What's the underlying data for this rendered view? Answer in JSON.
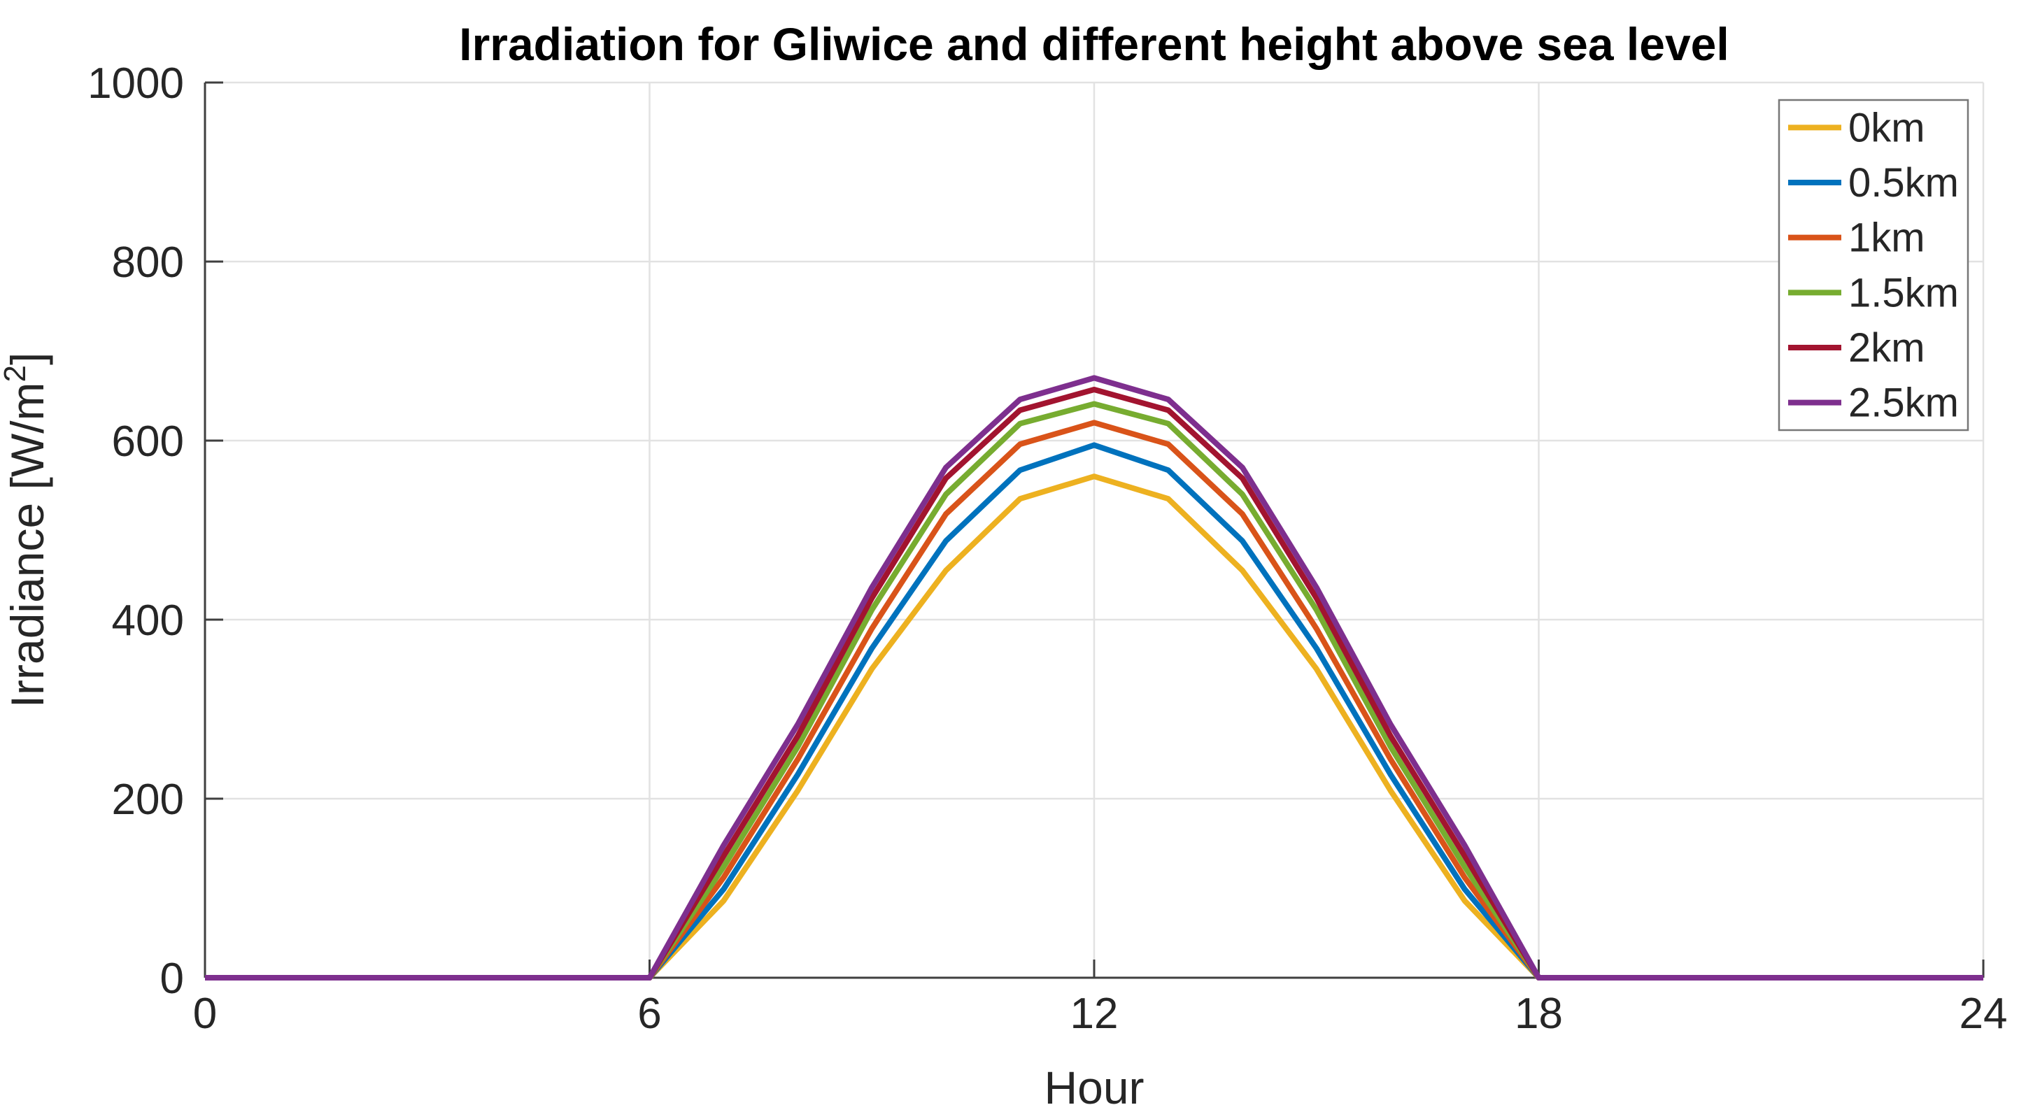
{
  "chart_data": {
    "type": "line",
    "title": "Irradiation for Gliwice and different height above sea level",
    "xlabel": "Hour",
    "ylabel": "Irradiance [W/m²]",
    "ylabel_parts": {
      "prefix": "Irradiance [W/m",
      "superscript": "2",
      "suffix": "]"
    },
    "x": [
      0,
      1,
      2,
      3,
      4,
      5,
      6,
      7,
      8,
      9,
      10,
      11,
      12,
      13,
      14,
      15,
      16,
      17,
      18,
      19,
      20,
      21,
      22,
      23,
      24
    ],
    "series": [
      {
        "name": "0km",
        "color": "#EDB120",
        "values": [
          0,
          0,
          0,
          0,
          0,
          0,
          0,
          86,
          209,
          345,
          455,
          535,
          560,
          535,
          455,
          345,
          209,
          86,
          0,
          0,
          0,
          0,
          0,
          0,
          0
        ]
      },
      {
        "name": "0.5km",
        "color": "#0072BD",
        "values": [
          0,
          0,
          0,
          0,
          0,
          0,
          0,
          99,
          227,
          368,
          488,
          567,
          595,
          567,
          488,
          368,
          227,
          99,
          0,
          0,
          0,
          0,
          0,
          0,
          0
        ]
      },
      {
        "name": "1km",
        "color": "#D95319",
        "values": [
          0,
          0,
          0,
          0,
          0,
          0,
          0,
          112,
          244,
          390,
          518,
          596,
          620,
          596,
          518,
          390,
          244,
          112,
          0,
          0,
          0,
          0,
          0,
          0,
          0
        ]
      },
      {
        "name": "1.5km",
        "color": "#77AC30",
        "values": [
          0,
          0,
          0,
          0,
          0,
          0,
          0,
          124,
          258,
          411,
          540,
          619,
          641,
          619,
          540,
          411,
          258,
          124,
          0,
          0,
          0,
          0,
          0,
          0,
          0
        ]
      },
      {
        "name": "2km",
        "color": "#A2142F",
        "values": [
          0,
          0,
          0,
          0,
          0,
          0,
          0,
          136,
          270,
          424,
          558,
          634,
          657,
          634,
          558,
          424,
          270,
          136,
          0,
          0,
          0,
          0,
          0,
          0,
          0
        ]
      },
      {
        "name": "2.5km",
        "color": "#7E2F8E",
        "values": [
          0,
          0,
          0,
          0,
          0,
          0,
          0,
          148,
          283,
          436,
          570,
          646,
          670,
          646,
          570,
          436,
          283,
          148,
          0,
          0,
          0,
          0,
          0,
          0,
          0
        ]
      }
    ],
    "x_ticks": [
      0,
      6,
      12,
      18,
      24
    ],
    "y_ticks": [
      0,
      200,
      400,
      600,
      800,
      1000
    ],
    "xlim": [
      0,
      24
    ],
    "ylim": [
      0,
      1000
    ],
    "grid": true,
    "legend_position": "top-right",
    "colors": {
      "grid": "#E2E2E2",
      "axis": "#3F3F3F",
      "legend_border": "#777777",
      "background": "#FFFFFF"
    }
  }
}
